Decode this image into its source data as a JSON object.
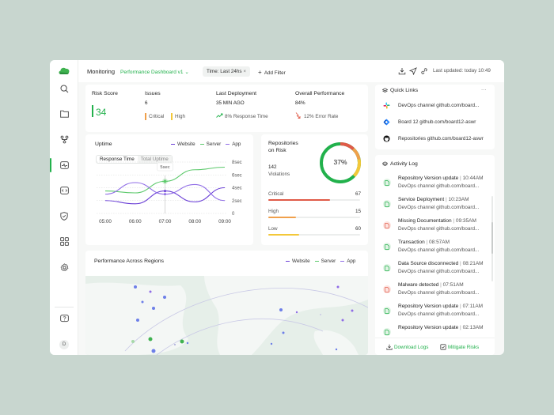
{
  "topbar": {
    "title": "Monitoring",
    "dashboard": "Performance Dashboard v1",
    "time_filter": "Time: Last 24hs",
    "add_filter": "Add Filter",
    "last_updated": "Last updated: today 10:49"
  },
  "sidebar": {
    "user_initial": "D"
  },
  "stats": {
    "risk_score": {
      "label": "Risk Score",
      "value": "34"
    },
    "issues": {
      "label": "Issues",
      "value": "6",
      "critical": "Critical",
      "high": "High"
    },
    "last_deployment": {
      "label": "Last Deployment",
      "value": "35 MIN AGO",
      "detail": "8% Response Time"
    },
    "overall": {
      "label": "Overall Performance",
      "value": "84%",
      "detail": "12% Error Rate"
    }
  },
  "uptime": {
    "title": "Uptime",
    "legend": [
      "Website",
      "Server",
      "App"
    ],
    "tabs": [
      "Response Time",
      "Total Uptime"
    ],
    "tooltip": "5sec",
    "y_ticks": [
      "8sec",
      "6sec",
      "4sec",
      "2sec",
      "0"
    ],
    "x_ticks": [
      "05:00",
      "06:00",
      "07:00",
      "08:00",
      "09:00"
    ]
  },
  "chart_data": {
    "type": "line",
    "title": "Uptime",
    "x": [
      "05:00",
      "06:00",
      "07:00",
      "08:00",
      "09:00"
    ],
    "ylim": [
      0,
      8
    ],
    "series": [
      {
        "name": "Website",
        "values": [
          2.0,
          1.5,
          3.5,
          1.8,
          4.0
        ]
      },
      {
        "name": "Server",
        "values": [
          3.5,
          3.2,
          5.0,
          6.8,
          7.2
        ]
      },
      {
        "name": "App",
        "values": [
          3.0,
          4.8,
          3.0,
          4.5,
          2.0
        ]
      }
    ]
  },
  "repos": {
    "title_line1": "Repositories",
    "title_line2": "on Risk",
    "count": "142",
    "count_label": "Violations",
    "percent": "37%",
    "rows": [
      {
        "label": "Critical",
        "value": "67",
        "fill": 0.67,
        "color": "#e05a47"
      },
      {
        "label": "High",
        "value": "15",
        "fill": 0.3,
        "color": "#f0a04b"
      },
      {
        "label": "Low",
        "value": "60",
        "fill": 0.34,
        "color": "#f3c83a"
      }
    ]
  },
  "regions": {
    "title": "Performance Across Regions",
    "legend": [
      "Website",
      "Server",
      "App"
    ]
  },
  "quick_links": {
    "title": "Quick Links",
    "more": "···",
    "items": [
      {
        "icon": "slack-icon",
        "text": "DevOps channel github.com/board..."
      },
      {
        "icon": "jira-icon",
        "text": "Board 12 github.com/board12-aswr"
      },
      {
        "icon": "github-icon",
        "text": "Repositories github.com/board12-aswr"
      }
    ]
  },
  "activity": {
    "title": "Activity Log",
    "items": [
      {
        "title": "Repository Version update",
        "time": "10:44AM",
        "desc": "DevOps channel github.com/board...",
        "status": "ok"
      },
      {
        "title": "Service Deployment",
        "time": "10:23AM",
        "desc": "DevOps channel github.com/board...",
        "status": "ok"
      },
      {
        "title": "Missing Documentation",
        "time": "09:35AM",
        "desc": "DevOps channel github.com/board...",
        "status": "alert"
      },
      {
        "title": "Transaction",
        "time": "08:57AM",
        "desc": "DevOps channel github.com/board...",
        "status": "ok"
      },
      {
        "title": "Data Source disconnected",
        "time": "08:21AM",
        "desc": "DevOps channel github.com/board...",
        "status": "ok"
      },
      {
        "title": "Malware detected",
        "time": "07:51AM",
        "desc": "DevOps channel github.com/board...",
        "status": "alert"
      },
      {
        "title": "Repository Version update",
        "time": "07:11AM",
        "desc": "DevOps channel github.com/board...",
        "status": "ok"
      },
      {
        "title": "Repository Version update",
        "time": "02:13AM",
        "desc": "",
        "status": "ok"
      }
    ],
    "download": "Download Logs",
    "mitigate": "Mitigate Risks"
  },
  "colors": {
    "accent": "#22b14c",
    "website": "#6a3fd6",
    "server": "#5cc96b",
    "app": "#8f6ce6"
  }
}
